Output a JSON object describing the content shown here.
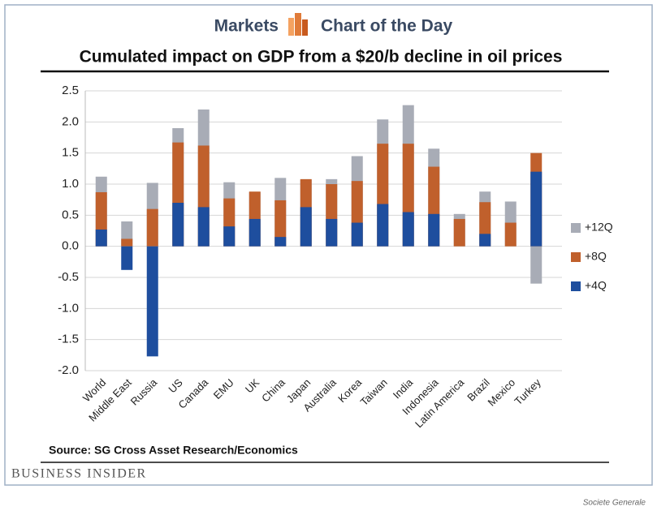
{
  "header": {
    "left": "Markets",
    "right": "Chart of the Day"
  },
  "brand": "Business Insider",
  "credit": "Societe Generale",
  "chart_data": {
    "type": "bar",
    "title": "Cumulated impact on GDP from a $20/b decline in oil prices",
    "source": "Source: SG Cross Asset Research/Economics",
    "categories": [
      "World",
      "Middle East",
      "Russia",
      "US",
      "Canada",
      "EMU",
      "UK",
      "China",
      "Japan",
      "Australia",
      "Korea",
      "Taiwan",
      "India",
      "Indonesia",
      "Latin America",
      "Brazil",
      "Mexico",
      "Turkey"
    ],
    "series": [
      {
        "name": "+12Q",
        "color": "#a8acb6",
        "values": [
          1.12,
          0.4,
          1.02,
          1.9,
          2.2,
          1.03,
          0.87,
          1.1,
          1.07,
          1.08,
          1.45,
          2.04,
          2.27,
          1.57,
          0.52,
          0.88,
          0.72,
          -0.6
        ]
      },
      {
        "name": "+8Q",
        "color": "#c0602c",
        "values": [
          0.87,
          0.12,
          0.6,
          1.67,
          1.62,
          0.77,
          0.88,
          0.74,
          1.08,
          1.0,
          1.05,
          1.65,
          1.65,
          1.28,
          0.44,
          0.71,
          0.38,
          1.5
        ]
      },
      {
        "name": "+4Q",
        "color": "#1e4e9e",
        "values": [
          0.27,
          -0.38,
          -1.77,
          0.7,
          0.63,
          0.32,
          0.44,
          0.15,
          0.63,
          0.44,
          0.38,
          0.68,
          0.55,
          0.52,
          0,
          0.2,
          0,
          1.2
        ]
      }
    ],
    "ylim": [
      -2.0,
      2.5
    ],
    "yticks": [
      2.5,
      {
        "value": 2.0,
        "label": "2.0"
      },
      1.5,
      {
        "value": 1.0,
        "label": "1.0"
      },
      0.5,
      {
        "value": 0.0,
        "label": "0.0"
      },
      -0.5,
      {
        "value": -1.0,
        "label": "-1.0"
      },
      -1.5,
      {
        "value": -2.0,
        "label": "-2.0"
      }
    ],
    "grid": true,
    "legend": "right"
  }
}
